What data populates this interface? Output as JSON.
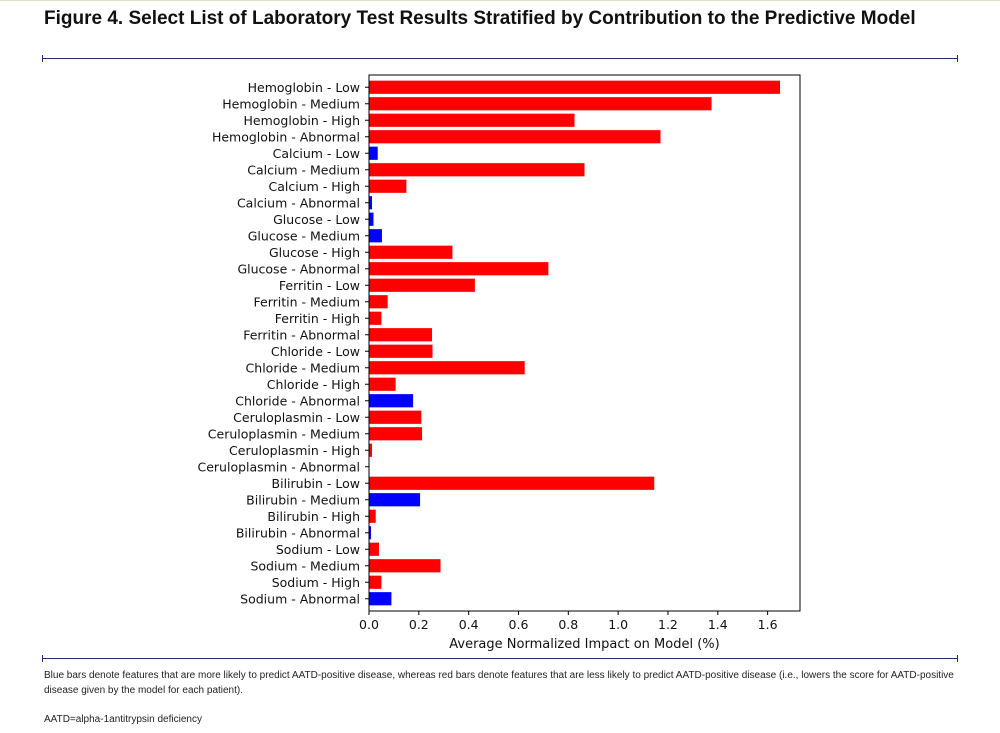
{
  "figure": {
    "title": "Figure 4. Select List of Laboratory Test Results Stratified by Contribution to the Predictive Model",
    "footnote": "Blue bars denote features that are more likely to predict AATD-positive disease, whereas red bars denote features that are less likely to predict AATD-positive disease (i.e., lowers the score for AATD-positive disease given by the model for each patient).",
    "abbreviation": "AATD=alpha-1antitrypsin deficiency"
  },
  "colors": {
    "red": "#ff0000",
    "blue": "#0000ff",
    "rule": "#1f2f6b"
  },
  "chart_data": {
    "type": "bar",
    "orientation": "horizontal",
    "xlabel": "Average Normalized Impact on Model (%)",
    "ylabel": "",
    "xlim": [
      0,
      1.73
    ],
    "xticks": [
      0.0,
      0.2,
      0.4,
      0.6,
      0.8,
      1.0,
      1.2,
      1.4,
      1.6
    ],
    "xtick_labels": [
      "0.0",
      "0.2",
      "0.4",
      "0.6",
      "0.8",
      "1.0",
      "1.2",
      "1.4",
      "1.6"
    ],
    "grid": false,
    "categories": [
      "Hemoglobin - Low",
      "Hemoglobin - Medium",
      "Hemoglobin - High",
      "Hemoglobin - Abnormal",
      "Calcium - Low",
      "Calcium - Medium",
      "Calcium - High",
      "Calcium - Abnormal",
      "Glucose - Low",
      "Glucose - Medium",
      "Glucose - High",
      "Glucose - Abnormal",
      "Ferritin - Low",
      "Ferritin - Medium",
      "Ferritin - High",
      "Ferritin - Abnormal",
      "Chloride - Low",
      "Chloride - Medium",
      "Chloride - High",
      "Chloride - Abnormal",
      "Ceruloplasmin - Low",
      "Ceruloplasmin - Medium",
      "Ceruloplasmin - High",
      "Ceruloplasmin - Abnormal",
      "Bilirubin - Low",
      "Bilirubin - Medium",
      "Bilirubin - High",
      "Bilirubin - Abnormal",
      "Sodium - Low",
      "Sodium - Medium",
      "Sodium - High",
      "Sodium - Abnormal"
    ],
    "values": [
      1.65,
      1.375,
      0.825,
      1.17,
      0.035,
      0.865,
      0.15,
      0.012,
      0.018,
      0.052,
      0.335,
      0.72,
      0.425,
      0.075,
      0.05,
      0.253,
      0.255,
      0.625,
      0.107,
      0.177,
      0.21,
      0.213,
      0.012,
      0.002,
      1.145,
      0.205,
      0.027,
      0.008,
      0.04,
      0.287,
      0.05,
      0.09
    ],
    "bar_colors": [
      "red",
      "red",
      "red",
      "red",
      "blue",
      "red",
      "red",
      "blue",
      "blue",
      "blue",
      "red",
      "red",
      "red",
      "red",
      "red",
      "red",
      "red",
      "red",
      "red",
      "blue",
      "red",
      "red",
      "red",
      "blue",
      "red",
      "blue",
      "red",
      "blue",
      "red",
      "red",
      "red",
      "blue"
    ]
  }
}
